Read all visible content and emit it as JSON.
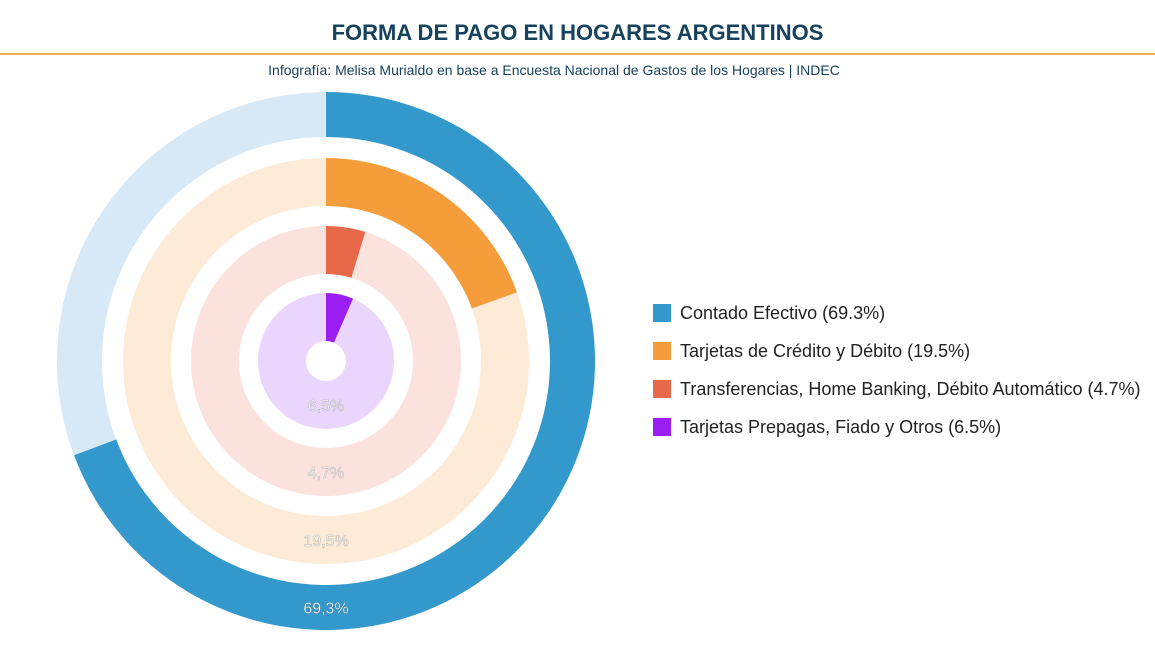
{
  "header": {
    "title": "FORMA DE PAGO EN HOGARES ARGENTINOS",
    "subtitle": "Infografía: Melisa Murialdo en base a Encuesta Nacional de Gastos de los Hogares |  INDEC"
  },
  "chart_data": {
    "type": "radial-bar",
    "title": "FORMA DE PAGO EN HOGARES ARGENTINOS",
    "categories": [
      "Contado Efectivo",
      "Tarjetas de Crédito y Débito",
      "Transferencias, Home Banking, Débito Automático",
      "Tarjetas Prepagas, Fiado y Otros"
    ],
    "values": [
      69.3,
      19.5,
      4.7,
      6.5
    ],
    "data_labels": [
      "69,3%",
      "19,5%",
      "4,7%",
      "6,5%"
    ],
    "legend_labels": [
      "Contado Efectivo (69.3%)",
      "Tarjetas de Crédito y Débito (19.5%)",
      "Transferencias, Home Banking, Débito Automático (4.7%)",
      "Tarjetas Prepagas, Fiado y Otros (6.5%)"
    ],
    "colors": [
      "#3399cc",
      "#f59d3a",
      "#e8694a",
      "#9b1ff2"
    ],
    "track_colors": [
      "#d7e9f6",
      "#fdebd8",
      "#fbe2dc",
      "#ead6fc"
    ],
    "max": 100,
    "legend_position": "right"
  }
}
